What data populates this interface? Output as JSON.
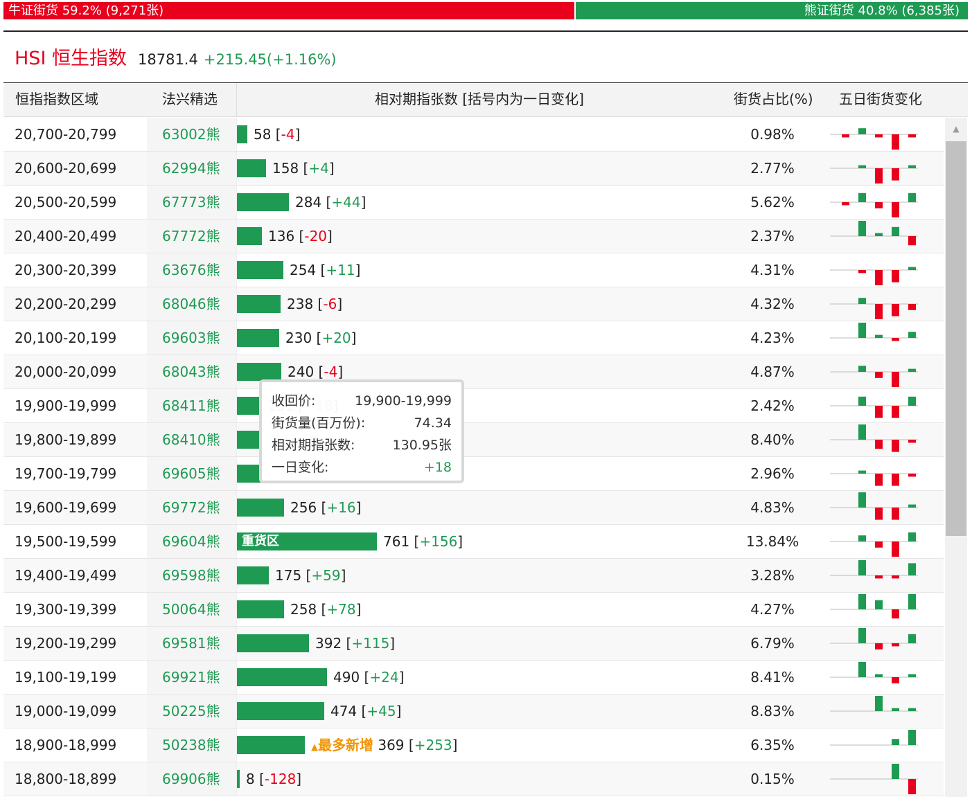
{
  "summary_bar": {
    "bull_label": "牛证街货 59.2% (9,271张)",
    "bear_label": "熊证街货 40.8% (6,385张)",
    "bull_share": 0.592,
    "bull_color": "#e8001d",
    "bear_color": "#1e9a53"
  },
  "index": {
    "name": "HSI 恒生指数",
    "value": "18781.4",
    "change": "+215.45(+1.16%)"
  },
  "table": {
    "headers": {
      "range": "恒指指数区域",
      "pick": "法兴精选",
      "contracts": "相对期指张数 [括号内为一日变化]",
      "ratio": "街货占比(%)",
      "five_day": "五日街货变化"
    },
    "rows": [
      {
        "range": "20,700-20,799",
        "code": "63002熊",
        "contracts": "58",
        "change": "-4",
        "ratio": "0.98%",
        "spark": [
          -1,
          2,
          -1,
          -5,
          -1
        ]
      },
      {
        "range": "20,600-20,699",
        "code": "62994熊",
        "contracts": "158",
        "change": "+4",
        "ratio": "2.77%",
        "spark": [
          0,
          1,
          -5,
          -4,
          1
        ]
      },
      {
        "range": "20,500-20,599",
        "code": "67773熊",
        "contracts": "284",
        "change": "+44",
        "ratio": "5.62%",
        "spark": [
          -1,
          3,
          -2,
          -5,
          3
        ]
      },
      {
        "range": "20,400-20,499",
        "code": "67772熊",
        "contracts": "136",
        "change": "-20",
        "ratio": "2.37%",
        "spark": [
          0,
          5,
          1,
          3,
          -3
        ]
      },
      {
        "range": "20,300-20,399",
        "code": "63676熊",
        "contracts": "254",
        "change": "+11",
        "ratio": "4.31%",
        "spark": [
          0,
          -1,
          -5,
          -4,
          1
        ]
      },
      {
        "range": "20,200-20,299",
        "code": "68046熊",
        "contracts": "238",
        "change": "-6",
        "ratio": "4.32%",
        "spark": [
          0,
          2,
          -5,
          -4,
          -2
        ]
      },
      {
        "range": "20,100-20,199",
        "code": "69603熊",
        "contracts": "230",
        "change": "+20",
        "ratio": "4.23%",
        "spark": [
          0,
          5,
          1,
          -1,
          2
        ]
      },
      {
        "range": "20,000-20,099",
        "code": "68043熊",
        "contracts": "240",
        "change": "-4",
        "ratio": "4.87%",
        "spark": [
          0,
          2,
          -2,
          -5,
          1
        ]
      },
      {
        "range": "19,900-19,999",
        "code": "68411熊",
        "contracts": "131",
        "change": "+18",
        "ratio": "2.42%",
        "spark": [
          0,
          3,
          -4,
          -4,
          3
        ]
      },
      {
        "range": "19,800-19,899",
        "code": "68410熊",
        "contracts": "",
        "change": "",
        "ratio": "8.40%",
        "spark": [
          0,
          5,
          -3,
          -4,
          -1
        ]
      },
      {
        "range": "19,700-19,799",
        "code": "69605熊",
        "contracts": "",
        "change": "",
        "ratio": "2.96%",
        "spark": [
          0,
          1,
          -4,
          -4,
          -1
        ]
      },
      {
        "range": "19,600-19,699",
        "code": "69772熊",
        "contracts": "256",
        "change": "+16",
        "ratio": "4.83%",
        "spark": [
          0,
          5,
          -4,
          -4,
          1
        ]
      },
      {
        "range": "19,500-19,599",
        "code": "69604熊",
        "contracts": "761",
        "change": "+156",
        "ratio": "13.84%",
        "tag": "重货区",
        "spark": [
          0,
          2,
          -2,
          -5,
          3
        ]
      },
      {
        "range": "19,400-19,499",
        "code": "69598熊",
        "contracts": "175",
        "change": "+59",
        "ratio": "3.28%",
        "spark": [
          0,
          5,
          -1,
          -1,
          4
        ]
      },
      {
        "range": "19,300-19,399",
        "code": "50064熊",
        "contracts": "258",
        "change": "+78",
        "ratio": "4.27%",
        "spark": [
          0,
          5,
          3,
          -3,
          5
        ]
      },
      {
        "range": "19,200-19,299",
        "code": "69581熊",
        "contracts": "392",
        "change": "+115",
        "ratio": "6.79%",
        "spark": [
          0,
          5,
          -2,
          -1,
          3
        ]
      },
      {
        "range": "19,100-19,199",
        "code": "69921熊",
        "contracts": "490",
        "change": "+24",
        "ratio": "8.41%",
        "spark": [
          0,
          5,
          1,
          -2,
          1
        ]
      },
      {
        "range": "19,000-19,099",
        "code": "50225熊",
        "contracts": "474",
        "change": "+45",
        "ratio": "8.83%",
        "spark": [
          0,
          0,
          5,
          1,
          1
        ]
      },
      {
        "range": "18,900-18,999",
        "code": "50238熊",
        "contracts": "369",
        "change": "+253",
        "ratio": "6.35%",
        "tag": "最多新增",
        "spark": [
          0,
          0,
          0,
          2,
          5
        ]
      },
      {
        "range": "18,800-18,899",
        "code": "69906熊",
        "contracts": "8",
        "change": "-128",
        "ratio": "0.15%",
        "spark": [
          0,
          0,
          0,
          5,
          -5
        ]
      }
    ]
  },
  "tooltip": {
    "price_label": "收回价:",
    "price_value": "19,900-19,999",
    "volume_label": "街货量(百万份):",
    "volume_value": "74.34",
    "contracts_label": "相对期指张数:",
    "contracts_value": "130.95张",
    "change_label": "一日变化:",
    "change_value": "+18"
  }
}
